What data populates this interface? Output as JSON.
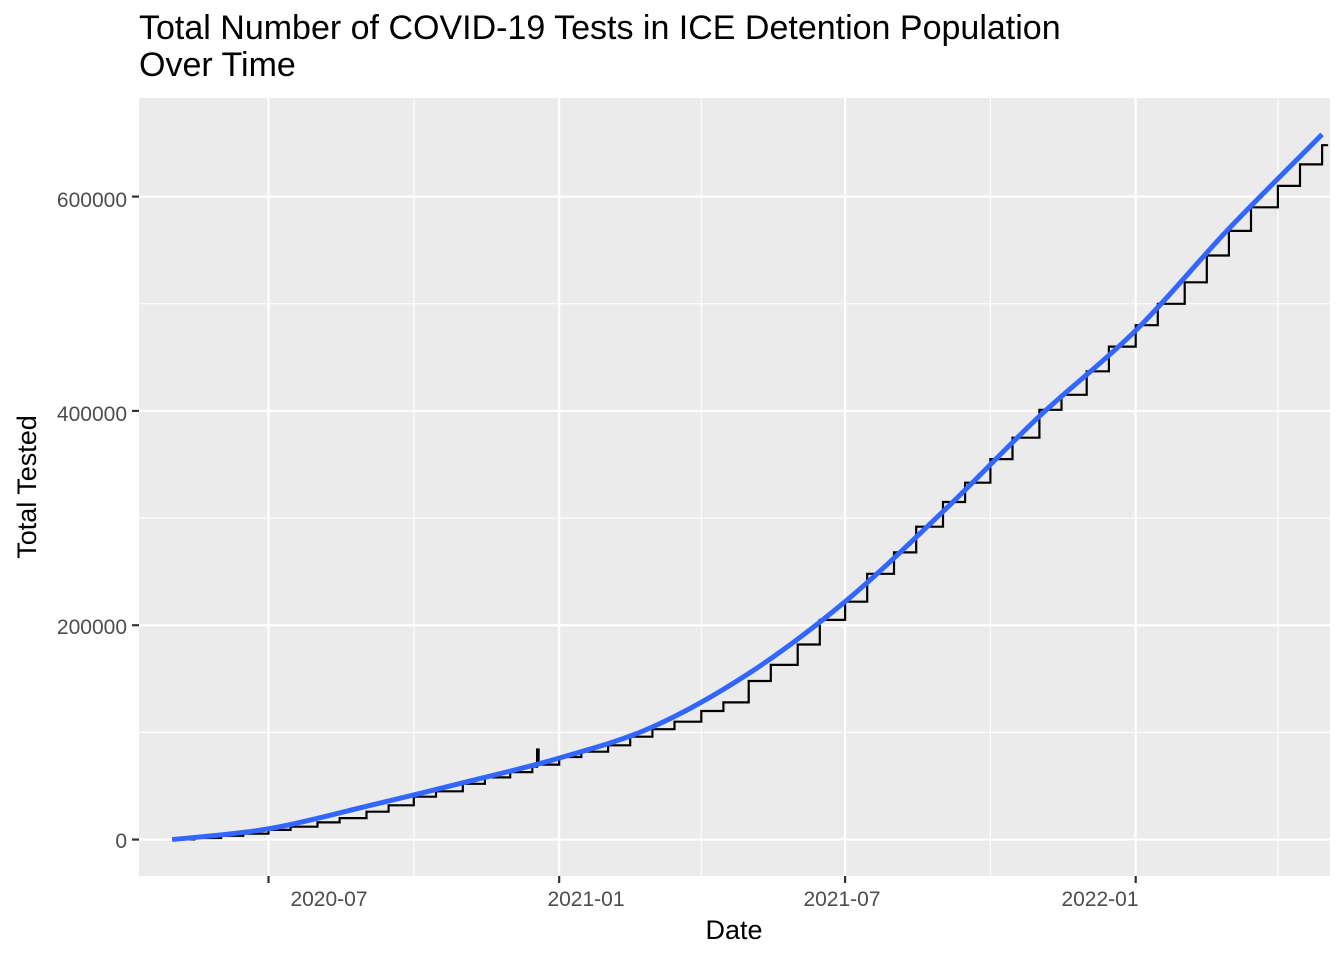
{
  "chart_data": {
    "type": "line",
    "title_lines": [
      "Total Number of COVID-19 Tests in ICE Detention Population",
      "Over Time"
    ],
    "xlabel": "Date",
    "ylabel": "Total Tested",
    "x_ticks": [
      "2020-07",
      "2021-01",
      "2021-07",
      "2022-01"
    ],
    "y_ticks": [
      "0",
      "200000",
      "400000",
      "600000"
    ],
    "xlim": [
      "2020-04-10",
      "2022-05-04"
    ],
    "ylim": [
      -34000,
      692000
    ],
    "grid": true,
    "legend": "none",
    "colors": {
      "panel": "#ebebeb",
      "grid": "#ffffff",
      "data_line": "#000000",
      "trend_line": "#3366ff",
      "tick": "#333333"
    },
    "series": [
      {
        "kind": "step",
        "points": [
          [
            "2020-05-01",
            200
          ],
          [
            "2020-05-15",
            1500
          ],
          [
            "2020-06-01",
            3500
          ],
          [
            "2020-06-15",
            5500
          ],
          [
            "2020-07-01",
            9000
          ],
          [
            "2020-07-15",
            12000
          ],
          [
            "2020-08-01",
            16000
          ],
          [
            "2020-08-15",
            20000
          ],
          [
            "2020-09-01",
            26000
          ],
          [
            "2020-09-15",
            32000
          ],
          [
            "2020-10-01",
            40000
          ],
          [
            "2020-10-15",
            45000
          ],
          [
            "2020-11-01",
            52000
          ],
          [
            "2020-11-15",
            58000
          ],
          [
            "2020-12-01",
            63000
          ],
          [
            "2020-12-15",
            68000
          ],
          [
            "2020-12-18",
            84000
          ],
          [
            "2020-12-19",
            70000
          ],
          [
            "2021-01-01",
            77000
          ],
          [
            "2021-01-15",
            82000
          ],
          [
            "2021-02-01",
            88000
          ],
          [
            "2021-02-15",
            96000
          ],
          [
            "2021-03-01",
            103000
          ],
          [
            "2021-03-15",
            110000
          ],
          [
            "2021-04-01",
            120000
          ],
          [
            "2021-04-15",
            128000
          ],
          [
            "2021-05-01",
            148000
          ],
          [
            "2021-05-15",
            163000
          ],
          [
            "2021-06-01",
            182000
          ],
          [
            "2021-06-15",
            205000
          ],
          [
            "2021-07-01",
            222000
          ],
          [
            "2021-07-15",
            248000
          ],
          [
            "2021-08-01",
            268000
          ],
          [
            "2021-08-15",
            292000
          ],
          [
            "2021-09-01",
            315000
          ],
          [
            "2021-09-15",
            333000
          ],
          [
            "2021-10-01",
            355000
          ],
          [
            "2021-10-15",
            375000
          ],
          [
            "2021-11-01",
            401000
          ],
          [
            "2021-11-15",
            415000
          ],
          [
            "2021-12-01",
            437000
          ],
          [
            "2021-12-15",
            460000
          ],
          [
            "2022-01-01",
            480000
          ],
          [
            "2022-01-15",
            500000
          ],
          [
            "2022-02-01",
            520000
          ],
          [
            "2022-02-15",
            545000
          ],
          [
            "2022-03-01",
            568000
          ],
          [
            "2022-03-15",
            590000
          ],
          [
            "2022-04-01",
            610000
          ],
          [
            "2022-04-15",
            630000
          ],
          [
            "2022-04-29",
            648000
          ]
        ]
      },
      {
        "kind": "smooth",
        "points": [
          [
            "2020-05-01",
            0
          ],
          [
            "2020-07-01",
            10000
          ],
          [
            "2020-09-01",
            31000
          ],
          [
            "2020-11-01",
            53000
          ],
          [
            "2021-01-01",
            76000
          ],
          [
            "2021-03-01",
            105000
          ],
          [
            "2021-05-01",
            155000
          ],
          [
            "2021-07-01",
            222000
          ],
          [
            "2021-09-01",
            306000
          ],
          [
            "2021-11-01",
            395000
          ],
          [
            "2022-01-01",
            475000
          ],
          [
            "2022-03-01",
            570000
          ],
          [
            "2022-04-29",
            658000
          ]
        ]
      }
    ]
  }
}
